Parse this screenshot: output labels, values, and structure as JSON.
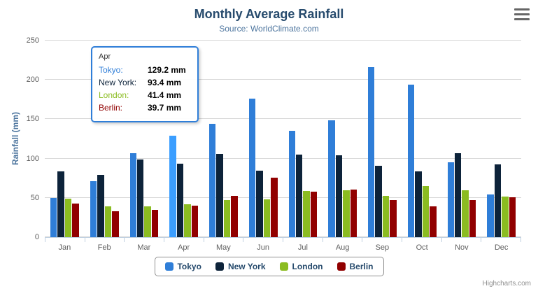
{
  "title": "Monthly Average Rainfall",
  "subtitle": "Source: WorldClimate.com",
  "credits": "Highcharts.com",
  "tooltip": {
    "header": "Apr",
    "hovered_category": "Apr",
    "hovered_series": "Tokyo",
    "rows": [
      {
        "name": "Tokyo",
        "value": "129.2 mm"
      },
      {
        "name": "New York",
        "value": "93.4 mm"
      },
      {
        "name": "London",
        "value": "41.4 mm"
      },
      {
        "name": "Berlin",
        "value": "39.7 mm"
      }
    ]
  },
  "chart_data": {
    "type": "bar",
    "title": "Monthly Average Rainfall",
    "subtitle": "Source: WorldClimate.com",
    "xlabel": "",
    "ylabel": "Rainfall (mm)",
    "ylim": [
      0,
      250
    ],
    "yticks": [
      0,
      50,
      100,
      150,
      200,
      250
    ],
    "grid": true,
    "legend_position": "bottom",
    "categories": [
      "Jan",
      "Feb",
      "Mar",
      "Apr",
      "May",
      "Jun",
      "Jul",
      "Aug",
      "Sep",
      "Oct",
      "Nov",
      "Dec"
    ],
    "series": [
      {
        "name": "Tokyo",
        "color": "#2f7ed8",
        "values": [
          49.9,
          71.5,
          106.4,
          129.2,
          144.0,
          176.0,
          135.6,
          148.5,
          216.4,
          194.1,
          95.6,
          54.4
        ]
      },
      {
        "name": "New York",
        "color": "#0d233a",
        "values": [
          83.6,
          78.8,
          98.5,
          93.4,
          106.0,
          84.5,
          105.0,
          104.3,
          91.2,
          83.5,
          106.6,
          92.3
        ]
      },
      {
        "name": "London",
        "color": "#8bbc21",
        "values": [
          48.9,
          38.8,
          39.3,
          41.4,
          47.0,
          48.3,
          59.0,
          59.6,
          52.4,
          65.2,
          59.3,
          51.2
        ]
      },
      {
        "name": "Berlin",
        "color": "#910000",
        "values": [
          42.4,
          33.2,
          34.5,
          39.7,
          52.6,
          75.5,
          57.4,
          60.4,
          47.6,
          39.1,
          46.8,
          51.1
        ]
      }
    ]
  }
}
